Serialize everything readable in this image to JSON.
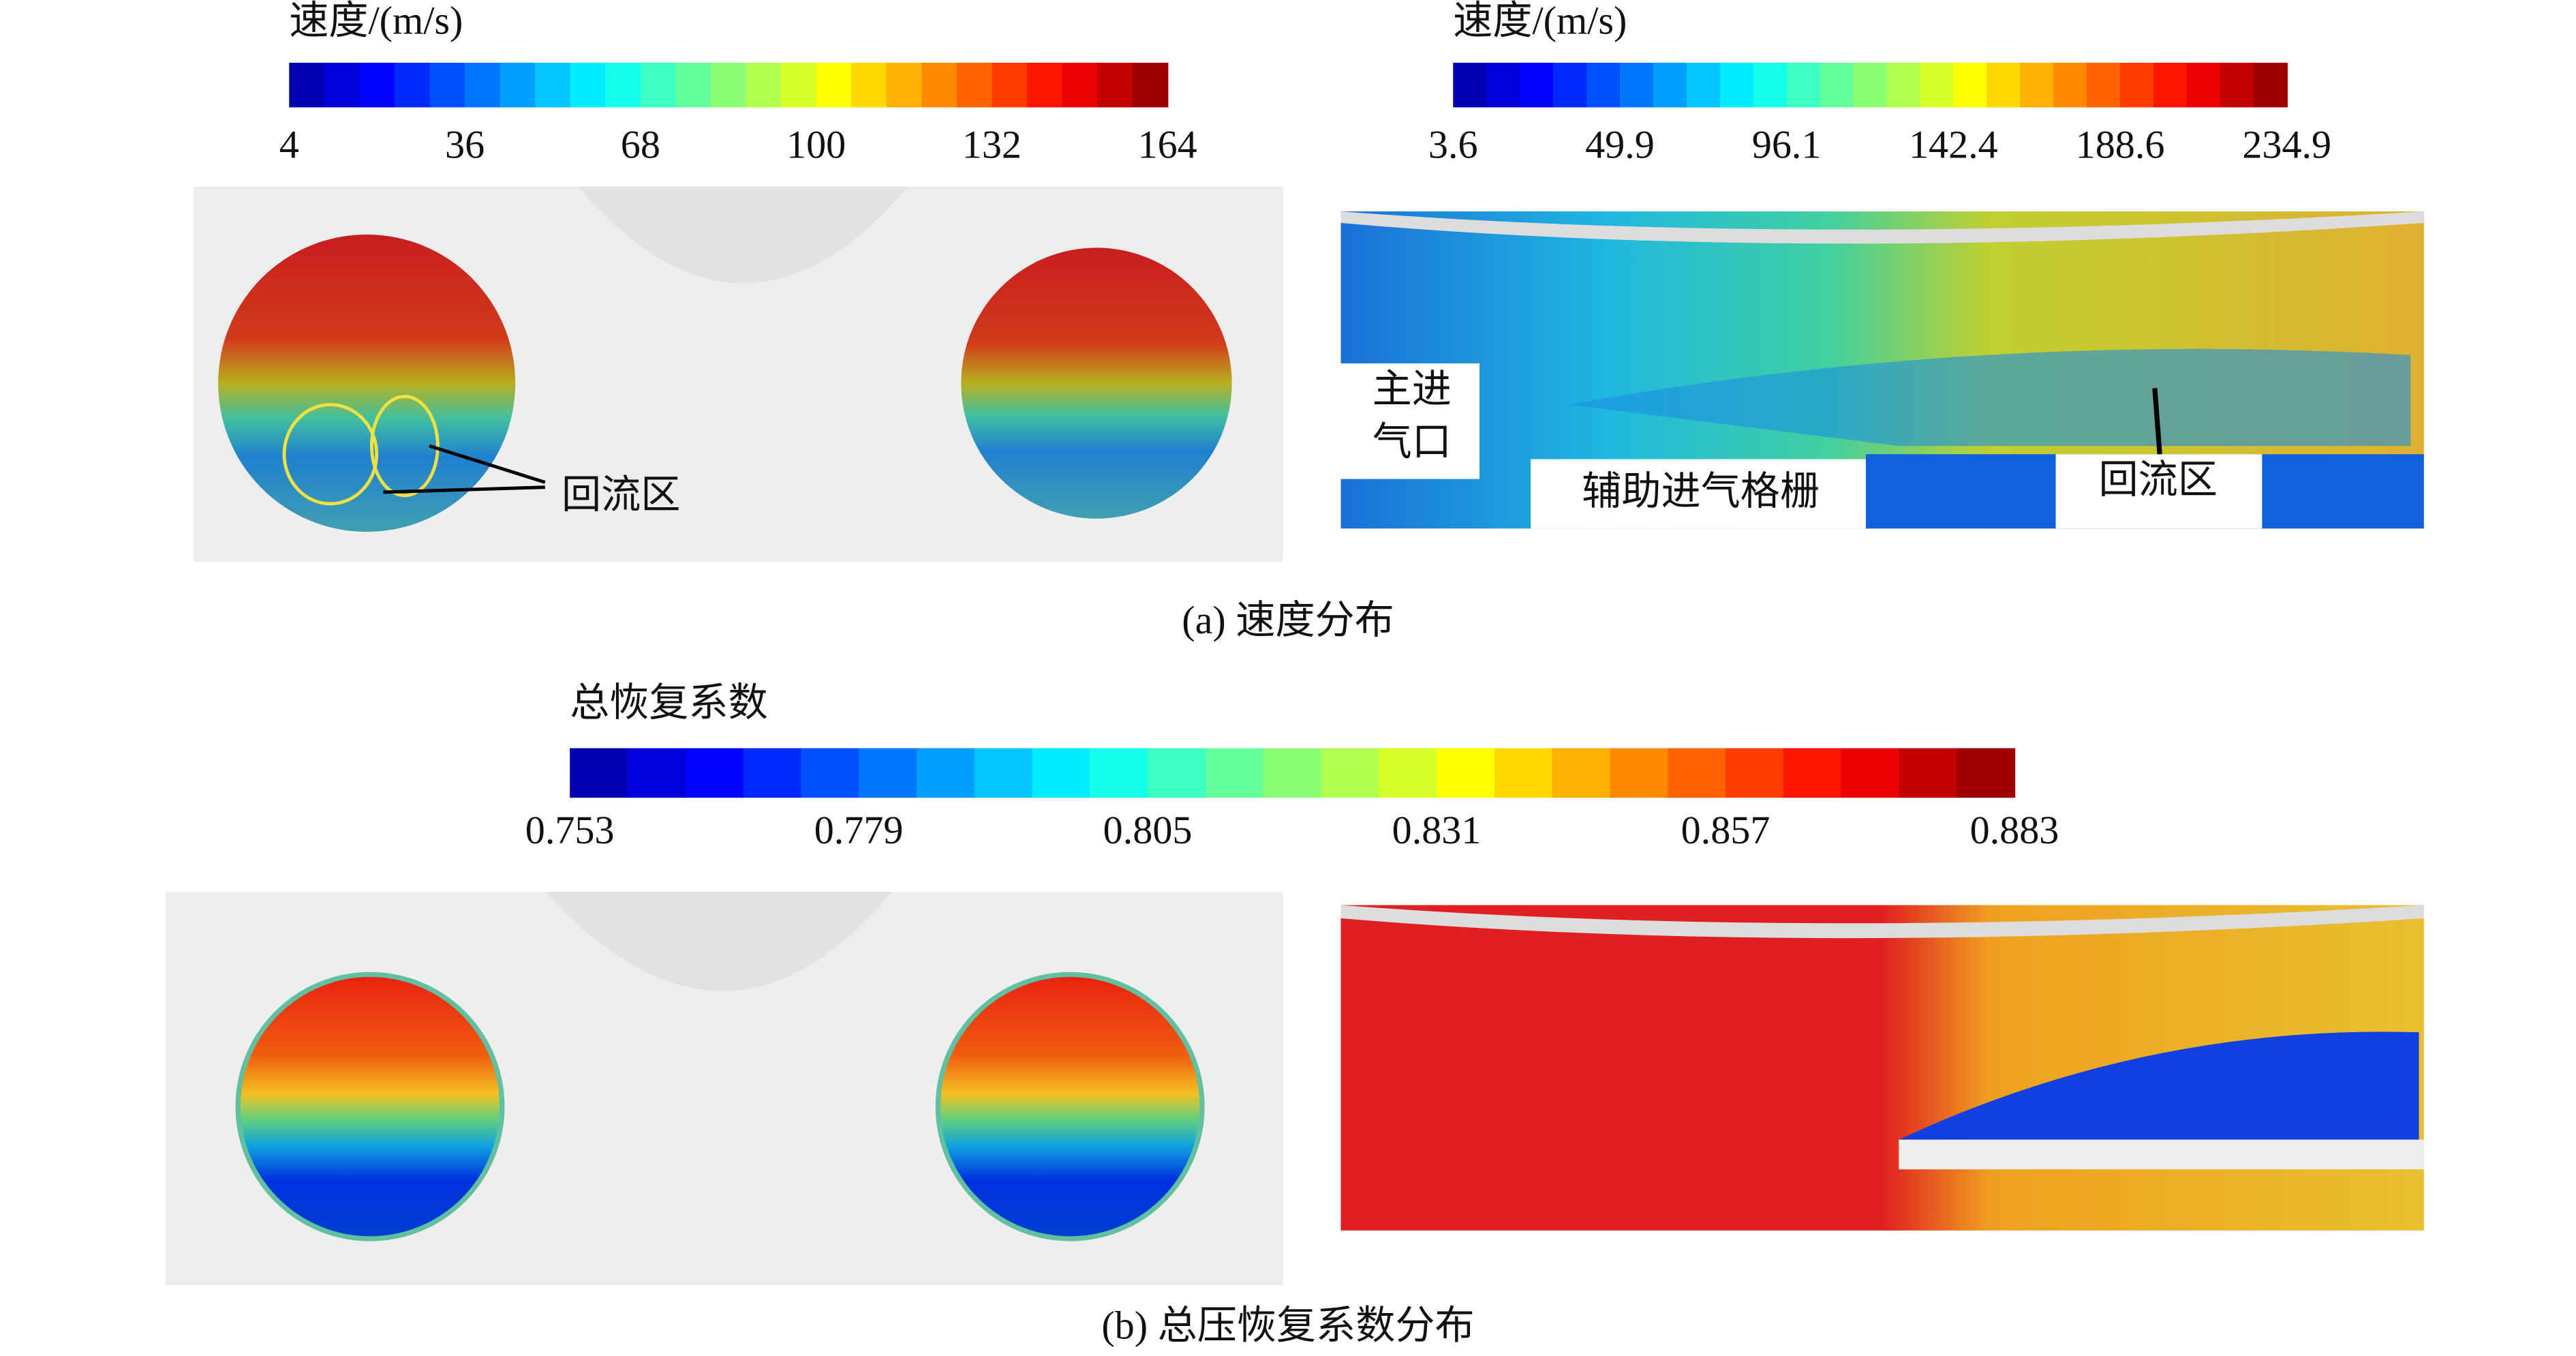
{
  "colorbars": [
    {
      "title": "速度/(m/s)",
      "ticks": [
        "4",
        "36",
        "68",
        "100",
        "132",
        "164"
      ]
    },
    {
      "title": "速度/(m/s)",
      "ticks": [
        "3.6",
        "49.9",
        "96.1",
        "142.4",
        "188.6",
        "234.9"
      ]
    },
    {
      "title": "总恢复系数",
      "ticks": [
        "0.753",
        "0.779",
        "0.805",
        "0.831",
        "0.857",
        "0.883"
      ]
    }
  ],
  "annotations": {
    "recirculation_left": "回流区",
    "main_inlet": [
      "主进",
      "气口"
    ],
    "aux_grille": "辅助进气格栅",
    "recirculation_right": "回流区"
  },
  "captions": [
    "(a) 速度分布",
    "(b) 总压恢复系数分布"
  ]
}
